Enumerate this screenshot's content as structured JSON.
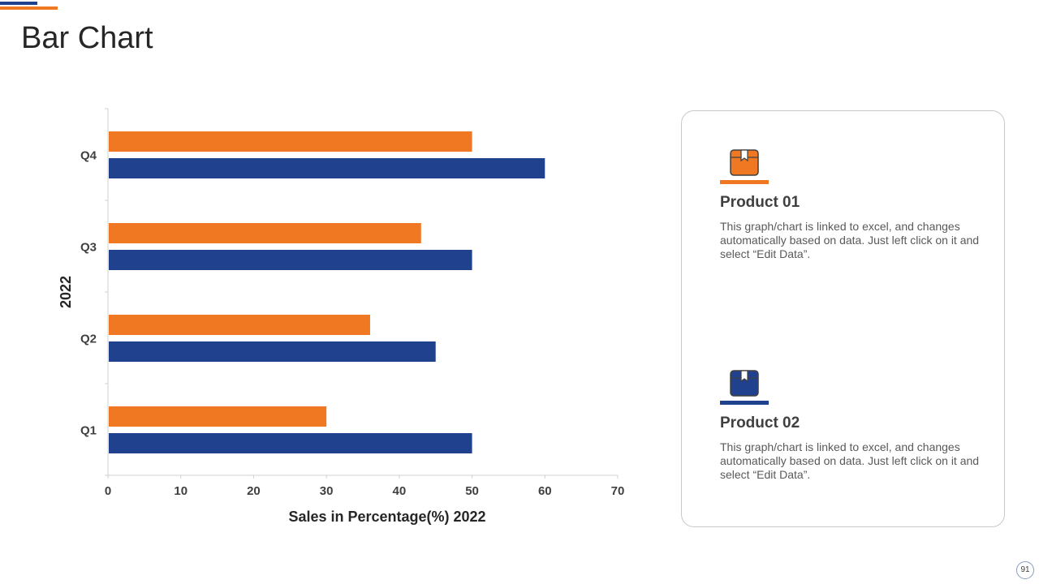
{
  "slide": {
    "title": "Bar Chart",
    "page_number": "91"
  },
  "colors": {
    "orange": "#f07822",
    "blue": "#20418e",
    "axis": "#d0d0d0"
  },
  "chart_data": {
    "type": "bar",
    "orientation": "horizontal",
    "categories": [
      "Q1",
      "Q2",
      "Q3",
      "Q4"
    ],
    "series": [
      {
        "name": "Product 01",
        "color": "#f07822",
        "values": [
          30,
          36,
          43,
          50
        ]
      },
      {
        "name": "Product 02",
        "color": "#20418e",
        "values": [
          50,
          45,
          50,
          60
        ]
      }
    ],
    "xlabel": "Sales in Percentage(%) 2022",
    "ylabel": "2022",
    "xlim": [
      0,
      70
    ],
    "xticks": [
      "0",
      "10",
      "20",
      "30",
      "40",
      "50",
      "60",
      "70"
    ],
    "grid": false,
    "legend": "none"
  },
  "products": [
    {
      "name": "Product 01",
      "icon": "package-box-icon",
      "desc": "This graph/chart is linked to excel, and changes automatically based on data. Just left click on it and select “Edit Data”."
    },
    {
      "name": "Product 02",
      "icon": "package-box-icon",
      "desc": "This graph/chart is linked to excel, and changes automatically based on data. Just left click on it and select “Edit Data”."
    }
  ]
}
